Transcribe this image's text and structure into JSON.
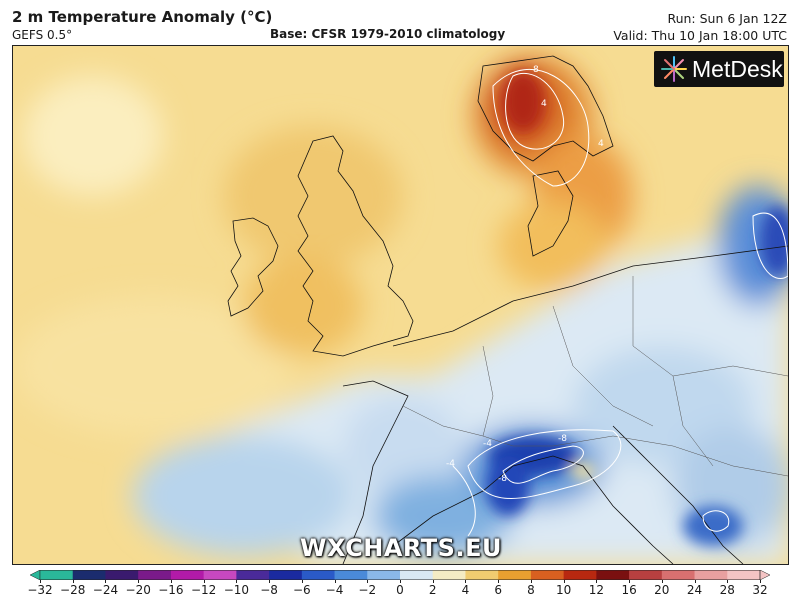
{
  "header": {
    "title": "2 m Temperature Anomaly (°C)",
    "model": "GEFS 0.5°",
    "base": "Base: CFSR 1979-2010 climatology",
    "run": "Run: Sun 6 Jan 12Z",
    "valid": "Valid: Thu 10 Jan 18:00 UTC"
  },
  "logo": {
    "text": "MetDesk",
    "icon": "metdesk-starburst-icon"
  },
  "watermark": "WXCHARTS.EU",
  "contour_labels": [
    "8",
    "4",
    "4",
    "-4",
    "-8",
    "-8",
    "-4"
  ],
  "colorbar": {
    "ticks": [
      "−32",
      "−28",
      "−24",
      "−20",
      "−16",
      "−12",
      "−10",
      "−8",
      "−6",
      "−4",
      "−2",
      "0",
      "2",
      "4",
      "6",
      "8",
      "10",
      "12",
      "16",
      "20",
      "24",
      "28",
      "32"
    ],
    "colors": [
      "#2ab89a",
      "#1b2c6e",
      "#3a1a6e",
      "#7a1a8a",
      "#b21aa8",
      "#c848c0",
      "#4a2a9a",
      "#1a2aa0",
      "#2a5ac8",
      "#4a8ad8",
      "#8ab8e8",
      "#d8e8f4",
      "#f4ecc4",
      "#f0cc70",
      "#e8a030",
      "#d86020",
      "#b82810",
      "#7a1010",
      "#b84040",
      "#d87070",
      "#e8a0a0",
      "#f4c4c4"
    ]
  }
}
